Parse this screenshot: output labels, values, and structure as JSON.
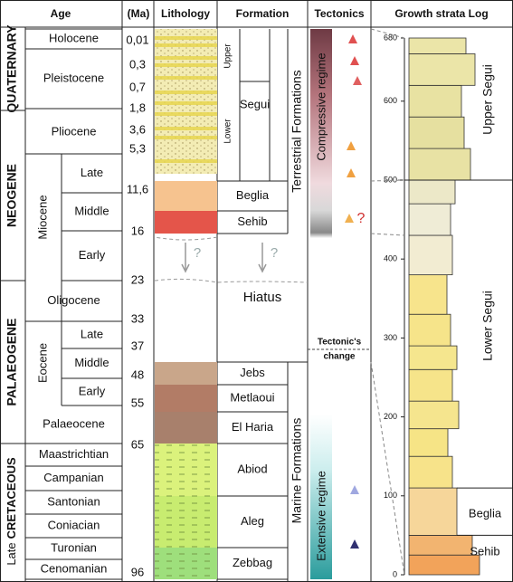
{
  "headers": {
    "age": "Age",
    "ma": "(Ma)",
    "lithology": "Lithology",
    "formation": "Formation",
    "tectonics": "Tectonics",
    "log": "Growth strata Log"
  },
  "eras": [
    "QUATERNARY",
    "NEOGENE",
    "PALAEOGENE"
  ],
  "late_cretaceous": {
    "prefix": "Late",
    "name": "CRETACEOUS"
  },
  "periods": [
    "Miocene",
    "Eocene"
  ],
  "stages": [
    "Holocene",
    "Pleistocene",
    "Pliocene",
    "Late",
    "Middle",
    "Early",
    "Oligocene",
    "Late",
    "Middle",
    "Early",
    "Palaeocene",
    "Maastrichtian",
    "Campanian",
    "Santonian",
    "Coniacian",
    "Turonian",
    "Cenomanian"
  ],
  "ages_ma": [
    "0,01",
    "0,3",
    "0,7",
    "1,8",
    "3,6",
    "5,3",
    "11,6",
    "16",
    "23",
    "33",
    "37",
    "48",
    "55",
    "65",
    "96"
  ],
  "formations": [
    "Segui",
    "Beglia",
    "Sehib",
    "Hiatus",
    "Jebs",
    "Metlaoui",
    "El Haria",
    "Abiod",
    "Aleg",
    "Zebbag"
  ],
  "segui_subunits": [
    "Upper",
    "Lower"
  ],
  "formation_groups": [
    "Terrestrial Formations",
    "Marine Formations"
  ],
  "tectonics": {
    "compressive": "Compressive regime",
    "change": [
      "Tectonic's",
      "change"
    ],
    "extensive": "Extensive regime"
  },
  "question_marks": [
    "?",
    "?",
    "?"
  ],
  "log": {
    "ticks": [
      0,
      100,
      200,
      300,
      400,
      500,
      600,
      680
    ],
    "units": [
      "Upper Segui",
      "Lower Segui",
      "Beglia",
      "Sehib"
    ]
  }
}
